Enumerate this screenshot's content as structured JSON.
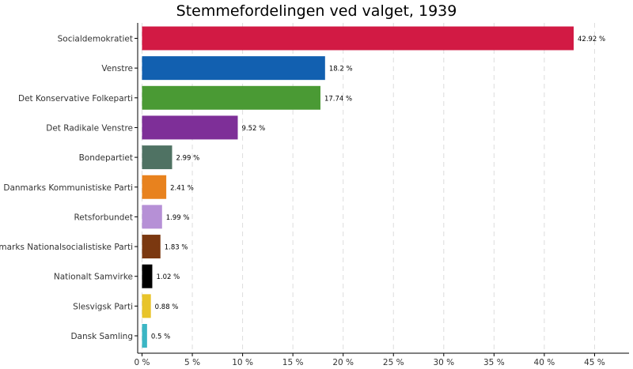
{
  "chart_data": {
    "type": "bar",
    "orientation": "horizontal",
    "title": "Stemmefordelingen ved valget, 1939",
    "xlabel": "",
    "ylabel": "",
    "xlim": [
      0,
      47
    ],
    "x_ticks": [
      0,
      5,
      10,
      15,
      20,
      25,
      30,
      35,
      40,
      45
    ],
    "x_tick_labels": [
      "0 %",
      "5 %",
      "10 %",
      "15 %",
      "20 %",
      "25 %",
      "30 %",
      "35 %",
      "40 %",
      "45 %"
    ],
    "grid": true,
    "legend": "none",
    "categories": [
      "Socialdemokratiet",
      "Venstre",
      "Det Konservative Folkeparti",
      "Det Radikale Venstre",
      "Bondepartiet",
      "Danmarks Kommunistiske Parti",
      "Retsforbundet",
      "Danmarks Nationalsocialistiske Parti",
      "Nationalt Samvirke",
      "Slesvigsk Parti",
      "Dansk Samling"
    ],
    "values": [
      42.92,
      18.2,
      17.74,
      9.52,
      2.99,
      2.41,
      1.99,
      1.83,
      1.02,
      0.88,
      0.5
    ],
    "value_labels": [
      "42.92 %",
      "18.2 %",
      "17.74 %",
      "9.52 %",
      "2.99 %",
      "2.41 %",
      "1.99 %",
      "1.83 %",
      "1.02 %",
      "0.88 %",
      "0.5 %"
    ],
    "colors": [
      "#D21A44",
      "#1260B0",
      "#4A9A34",
      "#7E2F98",
      "#4F7263",
      "#E8821E",
      "#B690D6",
      "#7B3810",
      "#000000",
      "#E8C42A",
      "#3BB6C4"
    ]
  }
}
